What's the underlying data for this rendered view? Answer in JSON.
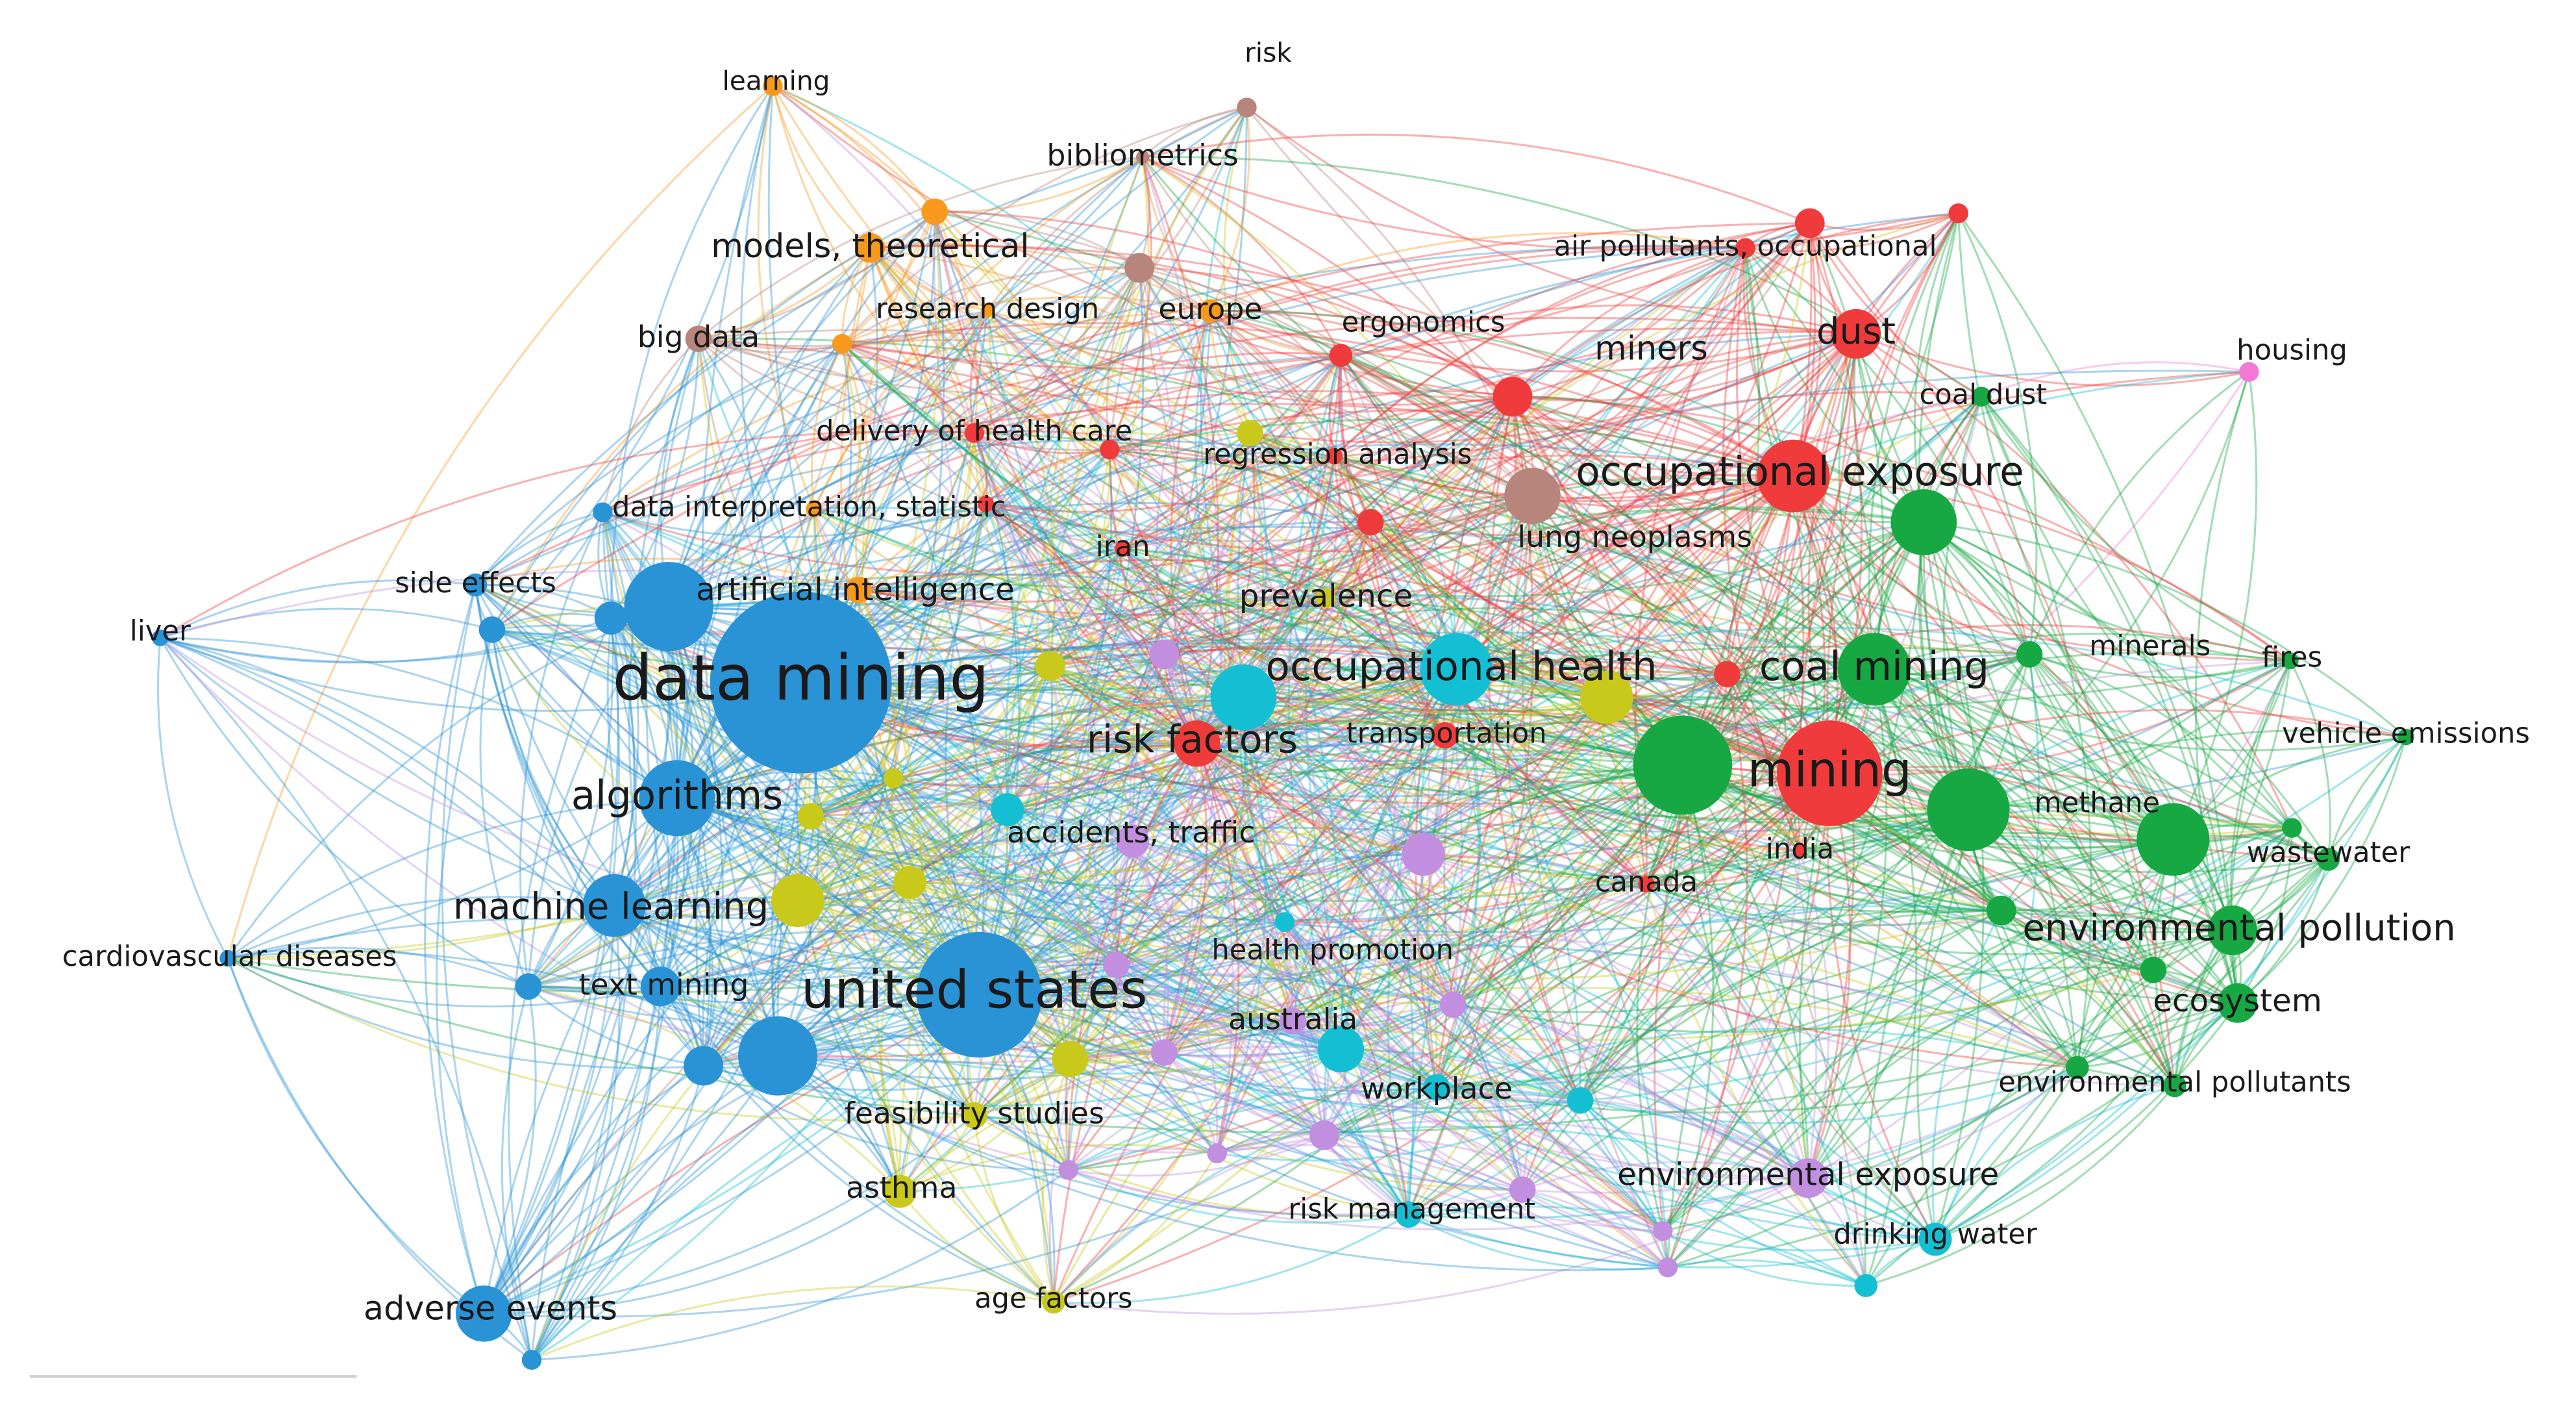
{
  "nodes": [
    {
      "label": "learning"
    },
    {
      "label": "risk"
    },
    {
      "label": "bibliometrics"
    },
    {
      "label": "models, theoretical"
    },
    {
      "label": "air pollutants, occupational"
    },
    {
      "label": "big data"
    },
    {
      "label": "research design"
    },
    {
      "label": "europe"
    },
    {
      "label": "ergonomics"
    },
    {
      "label": "miners"
    },
    {
      "label": "dust"
    },
    {
      "label": "housing"
    },
    {
      "label": "coal dust"
    },
    {
      "label": "delivery of health care"
    },
    {
      "label": "regression analysis"
    },
    {
      "label": "occupational exposure"
    },
    {
      "label": "data interpretation, statistic"
    },
    {
      "label": "lung neoplasms"
    },
    {
      "label": "iran"
    },
    {
      "label": "side effects"
    },
    {
      "label": "artificial intelligence"
    },
    {
      "label": "prevalence"
    },
    {
      "label": "liver"
    },
    {
      "label": "data mining"
    },
    {
      "label": "occupational health"
    },
    {
      "label": "coal mining"
    },
    {
      "label": "minerals"
    },
    {
      "label": "fires"
    },
    {
      "label": "risk factors"
    },
    {
      "label": "transportation"
    },
    {
      "label": "vehicle emissions"
    },
    {
      "label": "mining"
    },
    {
      "label": "algorithms"
    },
    {
      "label": "methane"
    },
    {
      "label": "accidents, traffic"
    },
    {
      "label": "india"
    },
    {
      "label": "wastewater"
    },
    {
      "label": "canada"
    },
    {
      "label": "machine learning"
    },
    {
      "label": "cardiovascular diseases"
    },
    {
      "label": "environmental pollution"
    },
    {
      "label": "health promotion"
    },
    {
      "label": "text mining"
    },
    {
      "label": "united states"
    },
    {
      "label": "ecosystem"
    },
    {
      "label": "australia"
    },
    {
      "label": "workplace"
    },
    {
      "label": "environmental pollutants"
    },
    {
      "label": "feasibility studies"
    },
    {
      "label": "environmental exposure"
    },
    {
      "label": "asthma"
    },
    {
      "label": "risk management"
    },
    {
      "label": "drinking water"
    },
    {
      "label": "age factors"
    },
    {
      "label": "adverse events"
    }
  ]
}
